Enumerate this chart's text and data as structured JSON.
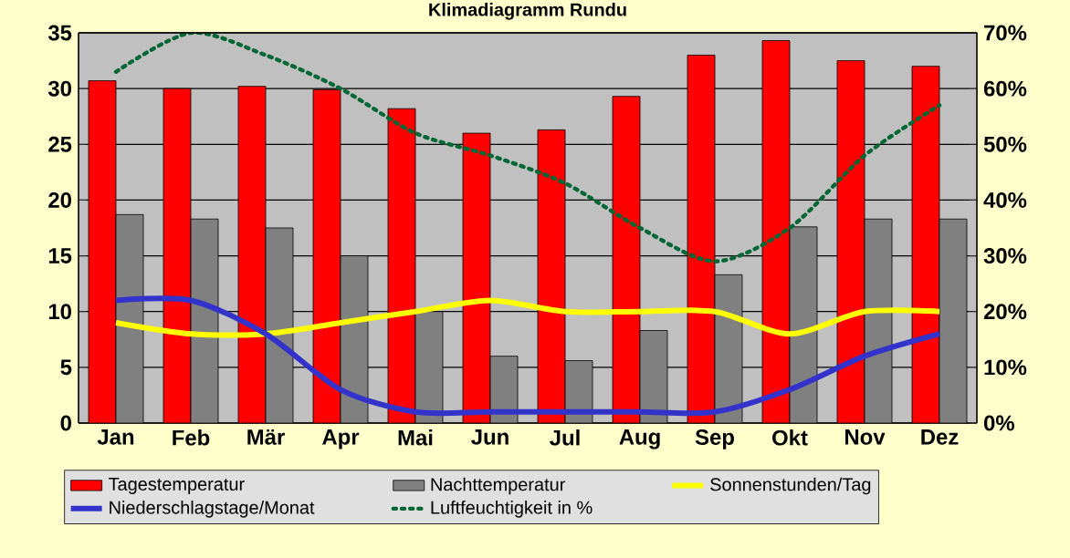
{
  "chart_data": {
    "type": "bar",
    "title": "Klimadiagramm Rundu",
    "categories": [
      "Jan",
      "Feb",
      "Mär",
      "Apr",
      "Mai",
      "Jun",
      "Jul",
      "Aug",
      "Sep",
      "Okt",
      "Nov",
      "Dez"
    ],
    "series": [
      {
        "name": "Tagestemperatur",
        "color": "#ff0000",
        "values": [
          30.7,
          30,
          30.2,
          29.9,
          28.2,
          26,
          26.3,
          29.3,
          33,
          34.3,
          32.5,
          32
        ]
      },
      {
        "name": "Nachttemperatur",
        "color": "#808080",
        "values": [
          18.7,
          18.3,
          17.5,
          15,
          10,
          6,
          5.6,
          8.3,
          13.3,
          17.6,
          18.3,
          18.3
        ]
      },
      {
        "name": "Sonnenstunden/Tag",
        "type": "line",
        "color": "#ffff00",
        "line_style": "solid",
        "values": [
          9,
          8,
          8,
          9,
          10,
          11,
          10,
          10,
          10,
          8,
          10,
          10
        ]
      },
      {
        "name": "Niederschlagstage/Monat",
        "type": "line",
        "color": "#3333cc",
        "line_style": "solid",
        "values": [
          11,
          11,
          8,
          3,
          1,
          1,
          1,
          1,
          1,
          3,
          6,
          8
        ]
      },
      {
        "name": "Luftfeuchtigkeit in %",
        "type": "line",
        "axis": "y2",
        "color": "#006633",
        "line_style": "dotted",
        "values": [
          63,
          70,
          66,
          60,
          52,
          48,
          43,
          35,
          29,
          35,
          48,
          57
        ]
      }
    ],
    "ylim": [
      0,
      35
    ],
    "yticks": [
      0,
      5,
      10,
      15,
      20,
      25,
      30,
      35
    ],
    "y2lim": [
      0,
      70
    ],
    "y2ticks": [
      {
        "value": 0,
        "label": "0%"
      },
      {
        "value": 10,
        "label": "10%"
      },
      {
        "value": 20,
        "label": "20%"
      },
      {
        "value": 30,
        "label": "30%"
      },
      {
        "value": 40,
        "label": "40%"
      },
      {
        "value": 50,
        "label": "50%"
      },
      {
        "value": 60,
        "label": "60%"
      },
      {
        "value": 70,
        "label": "70%"
      }
    ],
    "grid": "y",
    "legend": "bottom"
  }
}
